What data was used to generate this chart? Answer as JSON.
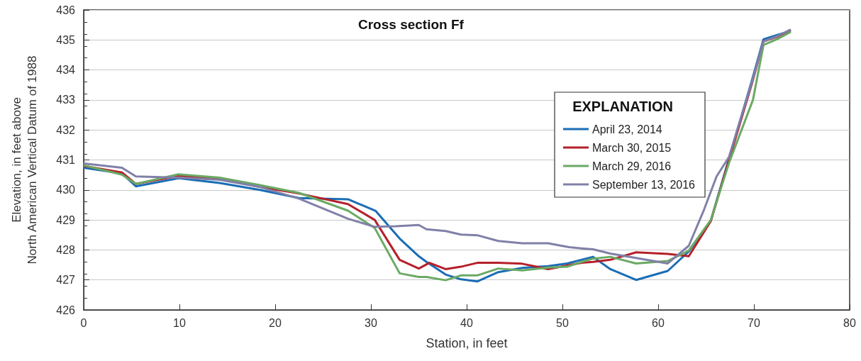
{
  "chart_data": {
    "type": "line",
    "title": "Cross section Ff",
    "xlabel": "Station, in feet",
    "ylabel": "Elevation, in feet above\nNorth American Vertical Datum of 1988",
    "legend_title": "EXPLANATION",
    "xlim": [
      0,
      80
    ],
    "xticks": [
      0,
      10,
      20,
      30,
      40,
      50,
      60,
      70,
      80
    ],
    "ylim": [
      426,
      436
    ],
    "yticks": [
      426,
      427,
      428,
      429,
      430,
      431,
      432,
      433,
      434,
      435,
      436
    ],
    "grid": "y",
    "legend": "right",
    "marker": "none",
    "line_style": "solid",
    "series": [
      {
        "name": "April 23, 2014",
        "color": "#1a6db5",
        "x": [
          0,
          4,
          5.45,
          9.9,
          14.2,
          18.4,
          22.5,
          27.6,
          30.5,
          33.0,
          35.0,
          35.8,
          37.8,
          39.4,
          41.1,
          43.3,
          45.8,
          48.5,
          50.5,
          53.2,
          55.0,
          57.7,
          61.0,
          63.2,
          65.5,
          67.4,
          69.8,
          71.0,
          72.4,
          73.85
        ],
        "values": [
          430.74,
          430.55,
          430.12,
          430.39,
          430.23,
          430.0,
          429.73,
          429.69,
          429.3,
          428.38,
          427.79,
          427.6,
          427.18,
          427.02,
          426.95,
          427.26,
          427.4,
          427.46,
          427.55,
          427.77,
          427.36,
          427.0,
          427.3,
          427.95,
          428.98,
          431.05,
          433.66,
          435.02,
          435.16,
          435.3
        ]
      },
      {
        "name": "March 30, 2015",
        "color": "#b5202a",
        "x": [
          0,
          4,
          5.45,
          9.9,
          14.2,
          18.4,
          22.5,
          27.6,
          30.4,
          33.0,
          35.0,
          36.1,
          37.8,
          39.4,
          41.1,
          43.3,
          45.8,
          48.5,
          52.0,
          53.2,
          55.0,
          57.7,
          61.0,
          63.2,
          65.5,
          67.4,
          69.8,
          71.0,
          72.4,
          73.85
        ],
        "values": [
          430.8,
          430.58,
          430.2,
          430.47,
          430.37,
          430.1,
          429.88,
          429.53,
          429.0,
          427.67,
          427.38,
          427.57,
          427.36,
          427.44,
          427.57,
          427.57,
          427.54,
          427.36,
          427.57,
          427.6,
          427.67,
          427.92,
          427.87,
          427.79,
          428.96,
          431.0,
          433.55,
          434.95,
          435.1,
          435.33
        ]
      },
      {
        "name": "March 29, 2016",
        "color": "#6aaa64",
        "x": [
          0,
          4,
          5.45,
          9.9,
          14.2,
          18.4,
          22.5,
          27.6,
          30.4,
          33.0,
          35.0,
          35.8,
          37.8,
          39.4,
          41.1,
          43.3,
          45.8,
          48.5,
          50.5,
          52.0,
          53.2,
          55.0,
          57.7,
          61.0,
          63.2,
          65.5,
          67.4,
          69.9,
          71.0,
          72.4,
          73.85
        ],
        "values": [
          430.82,
          430.51,
          430.2,
          430.52,
          430.41,
          430.16,
          429.9,
          429.31,
          428.73,
          427.22,
          427.1,
          427.1,
          426.99,
          427.15,
          427.15,
          427.38,
          427.32,
          427.41,
          427.44,
          427.6,
          427.71,
          427.77,
          427.55,
          427.63,
          427.98,
          429.0,
          430.9,
          433.0,
          434.83,
          435.02,
          435.27
        ]
      },
      {
        "name": "September 13, 2016",
        "color": "#8080a8",
        "x": [
          0,
          4,
          5.45,
          9.9,
          14.2,
          18.4,
          22.5,
          27.6,
          30.4,
          32.6,
          35.0,
          35.8,
          37.8,
          39.4,
          41.1,
          43.3,
          45.8,
          48.5,
          50.7,
          52.0,
          53.2,
          55.0,
          57.7,
          61.0,
          63.2,
          64.8,
          66.1,
          67.4,
          69.8,
          71.0,
          72.4,
          73.85
        ],
        "values": [
          430.88,
          430.74,
          430.45,
          430.41,
          430.34,
          430.1,
          429.71,
          429.04,
          428.77,
          428.79,
          428.83,
          428.69,
          428.63,
          428.51,
          428.49,
          428.3,
          428.22,
          428.22,
          428.09,
          428.05,
          428.02,
          427.88,
          427.73,
          427.55,
          428.14,
          429.35,
          430.45,
          431.1,
          433.6,
          434.95,
          435.12,
          435.35
        ]
      }
    ]
  }
}
